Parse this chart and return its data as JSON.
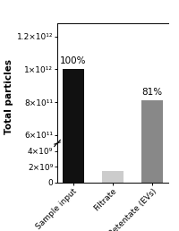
{
  "categories": [
    "Sample input",
    "Filtrate",
    "Retentate (EVs)"
  ],
  "values": [
    1000000000000.0,
    1500000000.0,
    810000000000.0
  ],
  "bar_colors": [
    "#111111",
    "#cccccc",
    "#888888"
  ],
  "annotations": [
    "100%",
    "",
    "81%"
  ],
  "ylabel": "Total particles",
  "ylim_lower": [
    0,
    5000000000.0
  ],
  "ylim_upper": [
    550000000000.0,
    1280000000000.0
  ],
  "yticks_lower": [
    0,
    2000000000.0,
    4000000000.0
  ],
  "yticks_upper": [
    600000000000.0,
    800000000000.0,
    1000000000000.0,
    1200000000000.0
  ],
  "yticklabels_lower": [
    "0",
    "2×10⁹",
    "4×10⁹"
  ],
  "yticklabels_upper": [
    "6×10¹¹",
    "8×10¹¹",
    "1×10¹²",
    "1.2×10¹²"
  ],
  "background_color": "#ffffff",
  "bar_width": 0.55,
  "tick_fontsize": 6.5,
  "label_fontsize": 7.5,
  "annot_fontsize": 7.5
}
